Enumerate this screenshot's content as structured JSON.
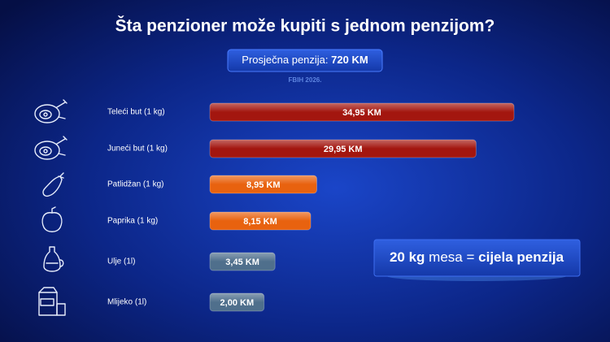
{
  "chart_data": {
    "type": "bar",
    "orientation": "horizontal",
    "title": "Šta penzioner može kupiti s jednom penzijom?",
    "subtitle_label": "Prosječna penzija:",
    "subtitle_value": "720 KM",
    "source": "FBIH 2026.",
    "categories": [
      "Teleći but (1 kg)",
      "Juneći but (1 kg)",
      "Patlidžan (1 kg)",
      "Paprika (1 kg)",
      "Ulje (1l)",
      "Mlijeko (1l)"
    ],
    "values": [
      34.95,
      29.95,
      8.95,
      8.15,
      3.45,
      2.0
    ],
    "value_labels": [
      "34,95 KM",
      "29,95 KM",
      "8,95 KM",
      "8,15 KM",
      "3,45 KM",
      "2,00 KM"
    ],
    "colors": [
      "#a3160f",
      "#a3160f",
      "#e8620f",
      "#e8620f",
      "#4f6f8c",
      "#4f6f8c"
    ],
    "callout": [
      "20 kg",
      "mesa =",
      "cijela penzija"
    ]
  }
}
